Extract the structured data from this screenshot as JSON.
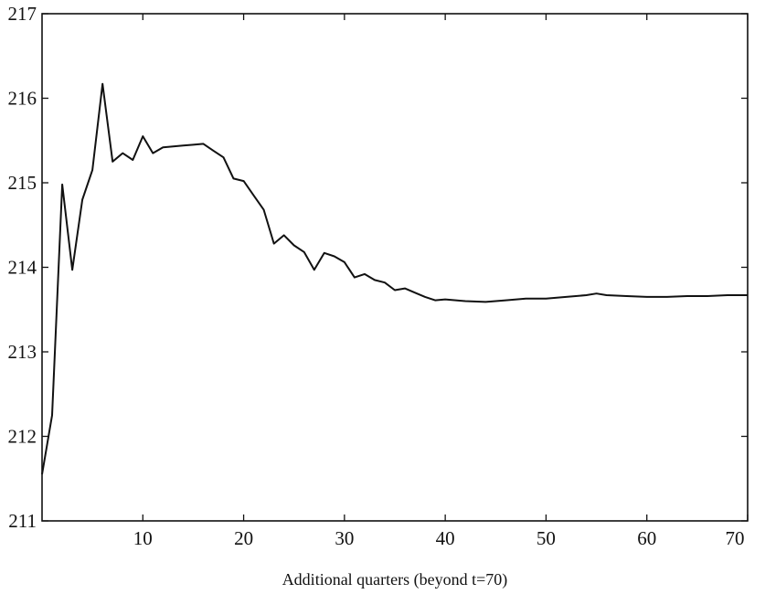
{
  "chart_data": {
    "type": "line",
    "title": "",
    "xlabel": "Additional quarters (beyond t=70)",
    "ylabel": "",
    "xlim": [
      0,
      70
    ],
    "ylim": [
      211,
      217
    ],
    "x_ticks": [
      10,
      20,
      30,
      40,
      50,
      60,
      70
    ],
    "y_ticks": [
      211,
      212,
      213,
      214,
      215,
      216,
      217
    ],
    "grid": false,
    "line_color": "#111111",
    "series": [
      {
        "x": [
          0,
          1,
          2,
          3,
          4,
          5,
          6,
          7,
          8,
          9,
          10,
          11,
          12,
          13,
          14,
          15,
          16,
          17,
          18,
          19,
          20,
          21,
          22,
          23,
          24,
          25,
          26,
          27,
          28,
          29,
          30,
          31,
          32,
          33,
          34,
          35,
          36,
          37,
          38,
          39,
          40,
          42,
          44,
          46,
          48,
          50,
          52,
          54,
          55,
          56,
          58,
          60,
          62,
          64,
          66,
          68,
          70
        ],
        "values": [
          211.55,
          212.25,
          214.98,
          213.97,
          214.8,
          215.15,
          216.17,
          215.25,
          215.35,
          215.27,
          215.55,
          215.35,
          215.42,
          215.43,
          215.44,
          215.45,
          215.46,
          215.38,
          215.3,
          215.05,
          215.02,
          214.85,
          214.68,
          214.28,
          214.38,
          214.26,
          214.18,
          213.97,
          214.17,
          214.13,
          214.06,
          213.88,
          213.92,
          213.85,
          213.82,
          213.73,
          213.75,
          213.7,
          213.65,
          213.61,
          213.62,
          213.6,
          213.59,
          213.61,
          213.63,
          213.63,
          213.65,
          213.67,
          213.69,
          213.67,
          213.66,
          213.65,
          213.65,
          213.66,
          213.66,
          213.67,
          213.67
        ]
      }
    ]
  }
}
